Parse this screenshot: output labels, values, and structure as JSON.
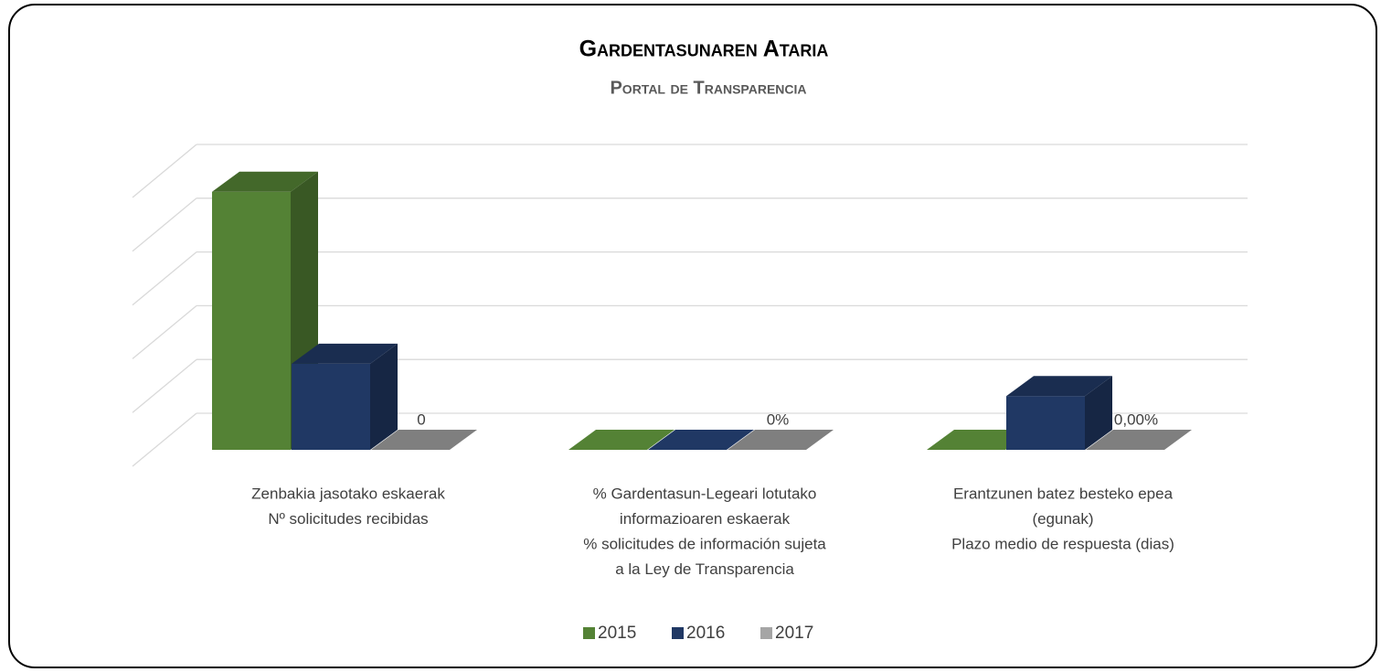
{
  "chart_data": {
    "type": "bar3d",
    "title": "Gardentasunaren Ataria",
    "subtitle": "Portal de Transparencia",
    "categories": [
      [
        "Zenbakia jasotako eskaerak",
        "Nº solicitudes recibidas"
      ],
      [
        "% Gardentasun-Legeari lotutako",
        "informazioaren eskaerak",
        "% solicitudes de información sujeta",
        "a la Ley de Transparencia"
      ],
      [
        "Erantzunen batez besteko epea",
        "(egunak)",
        "Plazo medio de respuesta (dias)"
      ]
    ],
    "series": [
      {
        "name": "2015",
        "color": "#548235",
        "values": [
          48,
          0,
          0
        ]
      },
      {
        "name": "2016",
        "color": "#203864",
        "values": [
          16,
          0,
          10
        ]
      },
      {
        "name": "2017",
        "color": "#7f7f7f",
        "values": [
          0,
          0,
          0
        ],
        "value_labels": [
          "0",
          "0%",
          "0,00%"
        ]
      }
    ],
    "ylim": [
      0,
      50
    ],
    "yticks": [
      0,
      10,
      20,
      30,
      40,
      50
    ],
    "grid": true,
    "legend": "bottom"
  }
}
